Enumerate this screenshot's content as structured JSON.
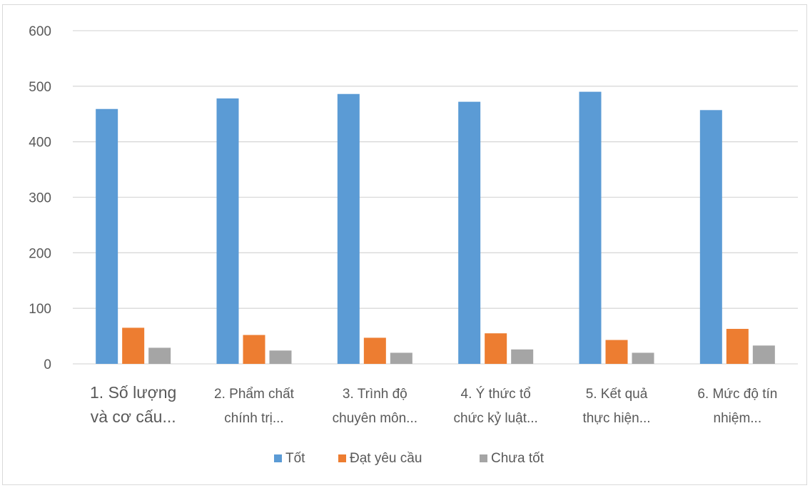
{
  "chart_data": {
    "type": "bar",
    "title": "",
    "xlabel": "",
    "ylabel": "",
    "ylim": [
      0,
      600
    ],
    "yticks": [
      0,
      100,
      200,
      300,
      400,
      500,
      600
    ],
    "grid": true,
    "legend_position": "bottom",
    "categories": [
      [
        "1. Số lượng",
        "và cơ cấu..."
      ],
      [
        "2. Phẩm chất",
        "chính trị..."
      ],
      [
        "3. Trình độ",
        "chuyên môn..."
      ],
      [
        "4. Ý thức tổ",
        "chức kỷ luật..."
      ],
      [
        "5. Kết quả",
        "thực hiện..."
      ],
      [
        "6. Mức độ tín",
        "nhiệm..."
      ]
    ],
    "series": [
      {
        "name": "Tốt",
        "color": "#5b9bd5",
        "values": [
          459,
          478,
          486,
          472,
          490,
          457
        ]
      },
      {
        "name": "Đạt yêu cầu",
        "color": "#ed7d31",
        "values": [
          65,
          52,
          47,
          55,
          43,
          63
        ]
      },
      {
        "name": "Chưa tốt",
        "color": "#a5a5a5",
        "values": [
          29,
          24,
          20,
          26,
          20,
          33
        ]
      }
    ]
  }
}
